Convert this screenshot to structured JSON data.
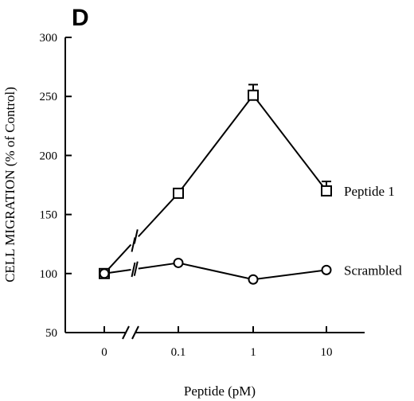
{
  "panel_label": "D",
  "chart_data": {
    "type": "line",
    "title": "",
    "xlabel": "Peptide  (pM)",
    "ylabel": "CELL MIGRATION  (% of Control)",
    "categories": [
      "0",
      "0.1",
      "1",
      "10"
    ],
    "ylim": [
      50,
      300
    ],
    "yticks": [
      50,
      100,
      150,
      200,
      250,
      300
    ],
    "x_axis_break": true,
    "grid": false,
    "legend": "inline labels at right end of each series",
    "series": [
      {
        "name": "Peptide 1",
        "marker": "square",
        "values": [
          100,
          168,
          251,
          170
        ],
        "error_upper": [
          null,
          null,
          260,
          178
        ],
        "line_break_after_first": true
      },
      {
        "name": "Scrambled",
        "marker": "circle",
        "values": [
          100,
          109,
          95,
          103
        ],
        "line_break_after_first": true
      }
    ]
  }
}
